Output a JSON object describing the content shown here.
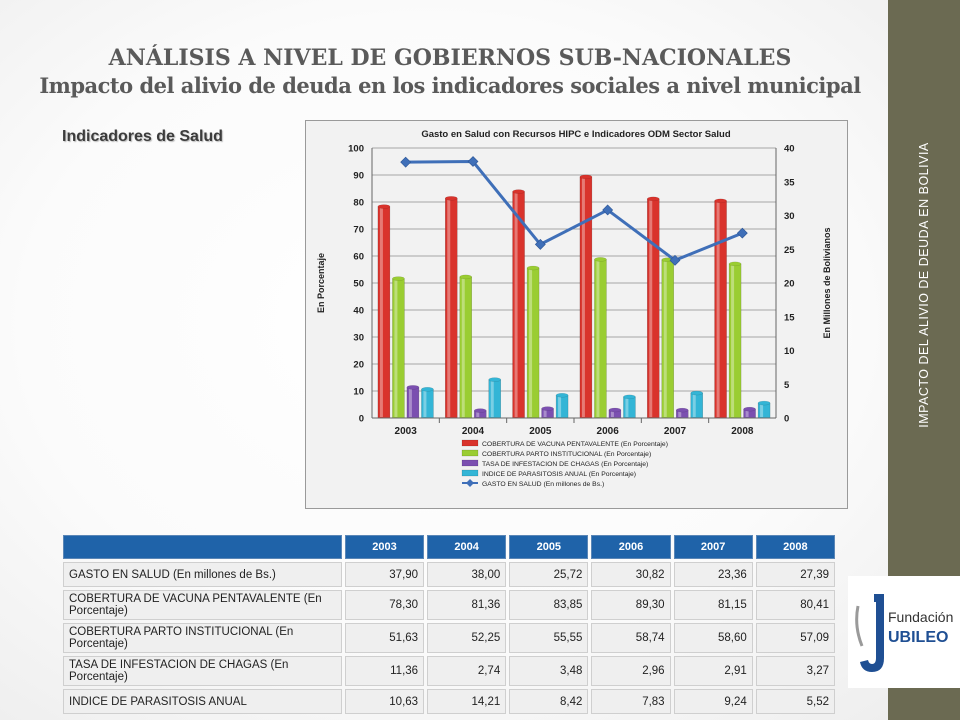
{
  "title": {
    "line1": "ANÁLISIS A NIVEL DE GOBIERNOS SUB-NACIONALES",
    "line2": "Impacto del alivio de deuda en los indicadores sociales a nivel municipal"
  },
  "section_title": "Indicadores de Salud",
  "sidebar": {
    "text": "IMPACTO DEL ALIVIO DE DEUDA EN BOLIVIA"
  },
  "logo": {
    "letters": "J",
    "line1": "Fundación",
    "line2": "UBILEO"
  },
  "colors": {
    "vacuna": "#d9332c",
    "parto": "#9acd32",
    "chagas": "#7b4fb0",
    "parasitosis": "#33b5d6",
    "gasto": "#3f6fb8",
    "header": "#1f63a9",
    "sidebar": "#6b6a52"
  },
  "chart_data": {
    "type": "bar",
    "title": "Gasto en Salud con Recursos HIPC e Indicadores ODM Sector Salud",
    "ylabel": "En Porcentaje",
    "y2label": "En Millones de Bolivianos",
    "ylim": [
      0,
      100
    ],
    "y2lim": [
      0,
      40
    ],
    "yticks": [
      "0",
      "10",
      "20",
      "30",
      "40",
      "50",
      "60",
      "70",
      "80",
      "90",
      "100"
    ],
    "y2ticks": [
      "0",
      "5",
      "10",
      "15",
      "20",
      "25",
      "30",
      "35",
      "40"
    ],
    "categories": [
      "2003",
      "2004",
      "2005",
      "2006",
      "2007",
      "2008"
    ],
    "series": [
      {
        "name": "COBERTURA DE VACUNA PENTAVALENTE (En Porcentaje)",
        "type": "bar",
        "color": "#d9332c",
        "values": [
          78.3,
          81.36,
          83.85,
          89.3,
          81.15,
          80.41
        ]
      },
      {
        "name": "COBERTURA PARTO INSTITUCIONAL (En Porcentaje)",
        "type": "bar",
        "color": "#9acd32",
        "values": [
          51.63,
          52.25,
          55.55,
          58.74,
          58.6,
          57.09
        ]
      },
      {
        "name": "TASA DE INFESTACION DE CHAGAS (En Porcentaje)",
        "type": "bar",
        "color": "#7b4fb0",
        "values": [
          11.36,
          2.74,
          3.48,
          2.96,
          2.91,
          3.27
        ]
      },
      {
        "name": "INDICE DE PARASITOSIS ANUAL (En Porcentaje)",
        "type": "bar",
        "color": "#33b5d6",
        "values": [
          10.63,
          14.21,
          8.42,
          7.83,
          9.24,
          5.52
        ]
      },
      {
        "name": "GASTO EN SALUD (En millones de Bs.)",
        "type": "line",
        "axis": "secondary",
        "color": "#3f6fb8",
        "values": [
          37.9,
          38.0,
          25.72,
          30.82,
          23.36,
          27.39
        ]
      }
    ],
    "grid": true,
    "legend": "bottom"
  },
  "table": {
    "headers": [
      "2003",
      "2004",
      "2005",
      "2006",
      "2007",
      "2008"
    ],
    "rows": [
      {
        "label": "GASTO EN SALUD (En millones de Bs.)",
        "values": [
          "37,90",
          "38,00",
          "25,72",
          "30,82",
          "23,36",
          "27,39"
        ]
      },
      {
        "label": "COBERTURA DE VACUNA PENTAVALENTE (En Porcentaje)",
        "values": [
          "78,30",
          "81,36",
          "83,85",
          "89,30",
          "81,15",
          "80,41"
        ]
      },
      {
        "label": "COBERTURA PARTO INSTITUCIONAL (En Porcentaje)",
        "values": [
          "51,63",
          "52,25",
          "55,55",
          "58,74",
          "58,60",
          "57,09"
        ]
      },
      {
        "label": "TASA DE INFESTACION DE CHAGAS (En Porcentaje)",
        "values": [
          "11,36",
          "2,74",
          "3,48",
          "2,96",
          "2,91",
          "3,27"
        ]
      },
      {
        "label": "INDICE DE PARASITOSIS ANUAL",
        "values": [
          "10,63",
          "14,21",
          "8,42",
          "7,83",
          "9,24",
          "5,52"
        ]
      }
    ]
  }
}
